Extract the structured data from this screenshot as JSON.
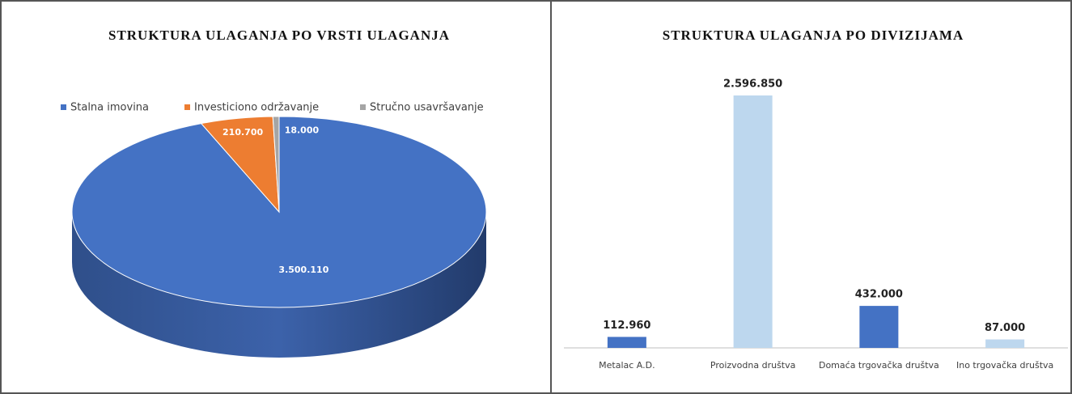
{
  "chart_data": [
    {
      "type": "pie",
      "title": "STRUKTURA ULAGANJA PO VRSTI ULAGANJA",
      "categories": [
        "Stalna imovina",
        "Investiciono održavanje",
        "Stručno usavršavanje"
      ],
      "values": [
        3500110,
        210700,
        18000
      ],
      "value_labels": [
        "3.500.110",
        "210.700",
        "18.000"
      ],
      "colors": [
        "#4472c4",
        "#ed7d31",
        "#a5a5a5"
      ],
      "legend": "top"
    },
    {
      "type": "bar",
      "title": "STRUKTURA ULAGANJA PO DIVIZIJAMA",
      "categories": [
        "Metalac A.D.",
        "Proizvodna društva",
        "Domaća trgovačka društva",
        "Ino trgovačka društva"
      ],
      "values": [
        112960,
        2596850,
        432000,
        87000
      ],
      "value_labels": [
        "112.960",
        "2.596.850",
        "432.000",
        "87.000"
      ],
      "colors": [
        "#4472c4",
        "#bdd7ee",
        "#4472c4",
        "#bdd7ee"
      ]
    }
  ]
}
